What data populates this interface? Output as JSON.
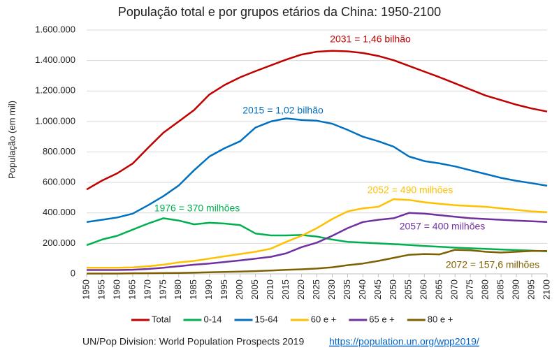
{
  "chart_data": {
    "type": "line",
    "title": "População total e por grupos etários da China: 1950-2100",
    "y_label": "População (em mil)",
    "source": "UN/Pop Division: World Population Prospects 2019",
    "source_url": "https://population.un.org/wpp2019/",
    "x": [
      1950,
      1955,
      1960,
      1965,
      1970,
      1975,
      1980,
      1985,
      1990,
      1995,
      2000,
      2005,
      2010,
      2015,
      2020,
      2025,
      2030,
      2035,
      2040,
      2045,
      2050,
      2055,
      2060,
      2065,
      2070,
      2075,
      2080,
      2085,
      2090,
      2095,
      2100
    ],
    "xlim": [
      1950,
      2100
    ],
    "xticks": [
      1950,
      1955,
      1960,
      1965,
      1970,
      1975,
      1980,
      1985,
      1990,
      1995,
      2000,
      2005,
      2010,
      2015,
      2020,
      2025,
      2030,
      2035,
      2040,
      2045,
      2050,
      2055,
      2060,
      2065,
      2070,
      2075,
      2080,
      2085,
      2090,
      2095,
      2100
    ],
    "ylim": [
      0,
      1600000
    ],
    "yticks": [
      0,
      {
        "value": 200000,
        "label": "200.000"
      },
      {
        "value": 400000,
        "label": "400.000"
      },
      {
        "value": 600000,
        "label": "600.000"
      },
      {
        "value": 800000,
        "label": "800.000"
      },
      {
        "value": 1000000,
        "label": "1.000.000"
      },
      {
        "value": 1200000,
        "label": "1.200.000"
      },
      {
        "value": 1400000,
        "label": "1.400.000"
      },
      {
        "value": 1600000,
        "label": "1.600.000"
      }
    ],
    "grid": true,
    "legend": "bottom",
    "series": [
      {
        "name": "Total",
        "color": "#c00000",
        "values": [
          554000,
          612000,
          660000,
          724000,
          827000,
          926000,
          1000000,
          1075000,
          1177000,
          1240000,
          1290000,
          1330000,
          1368000,
          1406000,
          1439000,
          1458000,
          1464000,
          1460000,
          1449000,
          1430000,
          1402000,
          1365000,
          1327000,
          1290000,
          1250000,
          1210000,
          1170000,
          1140000,
          1110000,
          1085000,
          1065000
        ]
      },
      {
        "name": "0-14",
        "color": "#00b050",
        "values": [
          188000,
          225000,
          250000,
          290000,
          330000,
          365000,
          350000,
          325000,
          335000,
          330000,
          320000,
          265000,
          252000,
          252000,
          255000,
          245000,
          225000,
          210000,
          205000,
          200000,
          195000,
          190000,
          183000,
          178000,
          172000,
          168000,
          164000,
          160000,
          156000,
          152000,
          148000
        ]
      },
      {
        "name": "15-64",
        "color": "#0070c0",
        "values": [
          340000,
          355000,
          370000,
          395000,
          450000,
          510000,
          580000,
          680000,
          770000,
          825000,
          870000,
          960000,
          1000000,
          1020000,
          1010000,
          1005000,
          985000,
          945000,
          900000,
          870000,
          835000,
          770000,
          740000,
          725000,
          705000,
          680000,
          655000,
          630000,
          610000,
          595000,
          578000
        ]
      },
      {
        "name": "60 e +",
        "color": "#ffc000",
        "values": [
          40000,
          40000,
          40000,
          42000,
          50000,
          60000,
          75000,
          85000,
          100000,
          115000,
          130000,
          145000,
          165000,
          210000,
          250000,
          300000,
          360000,
          410000,
          430000,
          440000,
          490000,
          485000,
          470000,
          460000,
          450000,
          445000,
          440000,
          430000,
          420000,
          410000,
          405000
        ]
      },
      {
        "name": "65 e +",
        "color": "#7030a0",
        "values": [
          25000,
          25000,
          25000,
          27000,
          32000,
          40000,
          50000,
          60000,
          68000,
          78000,
          88000,
          100000,
          112000,
          135000,
          175000,
          205000,
          250000,
          300000,
          340000,
          355000,
          365000,
          400000,
          395000,
          385000,
          375000,
          365000,
          360000,
          355000,
          350000,
          345000,
          340000
        ]
      },
      {
        "name": "80 e +",
        "color": "#7f6000",
        "values": [
          2000,
          2000,
          2000,
          3000,
          4000,
          5000,
          6000,
          8000,
          10000,
          13000,
          15000,
          18000,
          22000,
          26000,
          30000,
          35000,
          43000,
          57000,
          68000,
          85000,
          105000,
          125000,
          130000,
          128000,
          157600,
          155000,
          145000,
          140000,
          145000,
          150000,
          150000
        ]
      }
    ],
    "annotations": [
      "2031 = 1,46 bilhão",
      "2015 = 1,02 bilhão",
      "1976 = 370 milhões",
      "2052 = 490 milhões",
      "2057 = 400 milhões",
      "2072 = 157,6 milhões"
    ]
  }
}
